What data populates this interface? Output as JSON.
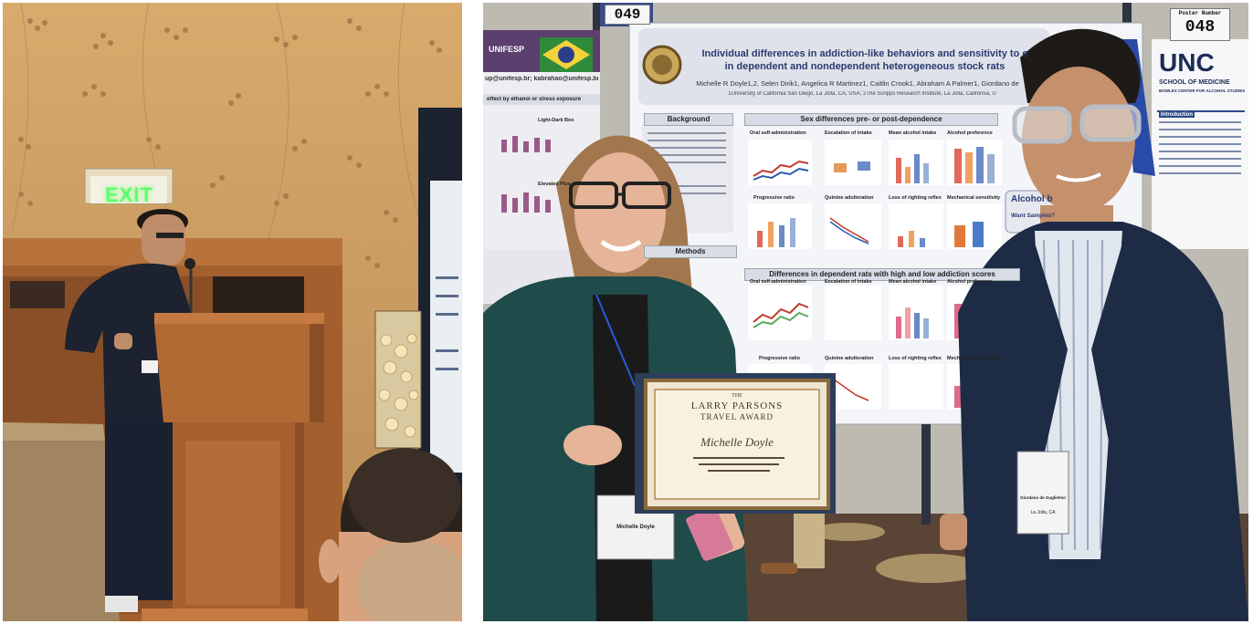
{
  "left_photo": {
    "exit_sign": "EXIT"
  },
  "right_photo": {
    "poster_numbers": {
      "left": "049",
      "right_label": "Poster Number",
      "right": "048"
    },
    "left_poster": {
      "header": "UNIFESP",
      "emails": "up@unifesp.br; kabrahao@unifesp.br",
      "caption": "effect by ethanol or stress exposure",
      "panel_a": "Light-Dark Box",
      "panel_b": "Elevated Plus"
    },
    "poster": {
      "title_line1": "Individual differences in addiction-like behaviors and sensitivity to e",
      "title_line2": "in dependent and nondependent heterogeneous stock rats",
      "authors": "Michelle R Doyle1,2, Selen Dirik1, Angelica R Martinez1, Caitlin Crook1, Abraham A Palmer1, Giordano de",
      "affiliation": "1University of California San Diego, La Jolla, CA, USA; 2The Scripps Research Institute, La Jolla, California, U",
      "sections": {
        "background": "Background",
        "sex_diff": "Sex differences pre- or post-dependence",
        "methods": "Methods",
        "dependent": "Differences in dependent rats with high and low addiction scores"
      },
      "panel_labels": [
        "Oral self-administration",
        "Escalation of intake",
        "Mean alcohol intake",
        "Alcohol preference",
        "Progressive ratio",
        "Quinine adulteration",
        "Loss of righting reflex",
        "Mechanical sensitivity",
        "Oral self-administration",
        "Escalation of intake",
        "Mean alcohol intake",
        "Alcohol preference",
        "Progressive ratio",
        "Quinine adulteration",
        "Loss of righting reflex",
        "Mechanical sensitivity"
      ],
      "alcohol_box": "Alcohol b",
      "want_samples": "Want Samples?"
    },
    "unc_poster": {
      "logo": "UNC",
      "school": "SCHOOL OF MEDICINE",
      "center": "BOWLES CENTER FOR ALCOHOL STUDIES",
      "intro": "Introduction"
    },
    "certificate": {
      "the": "THE",
      "title_line1": "LARRY PARSONS",
      "title_line2": "TRAVEL AWARD",
      "recipient": "Michelle Doyle"
    },
    "badges": {
      "woman_name": "Michelle Doyle",
      "man_name": "Giordano de Guglielmo",
      "man_location": "La Jolla, CA"
    }
  }
}
